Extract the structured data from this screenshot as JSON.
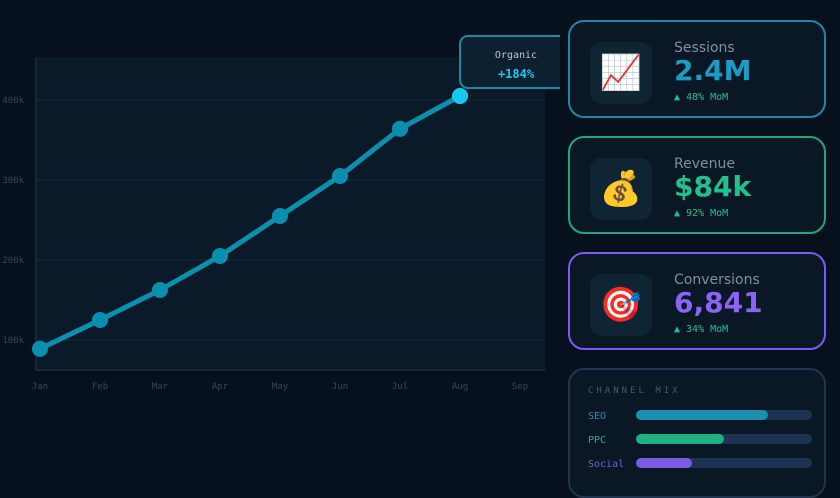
{
  "chart_data": {
    "type": "line",
    "categories": [
      "Jan",
      "Feb",
      "Mar",
      "Apr",
      "May",
      "Jun",
      "Jul",
      "Aug",
      "Sep"
    ],
    "series": [
      {
        "name": "Organic",
        "color": "#0a8fae",
        "values": [
          89000,
          125000,
          162500,
          205000,
          255000,
          305000,
          364000,
          405000,
          null
        ]
      }
    ],
    "ylim": [
      62500,
      453750
    ],
    "yticks": [
      {
        "value": 100000,
        "label": "100k"
      },
      {
        "value": 200000,
        "label": "200k"
      },
      {
        "value": 300000,
        "label": "300k"
      },
      {
        "value": 400000,
        "label": "400k"
      }
    ],
    "grid": true,
    "annotation": {
      "label": "Organic",
      "text": "+184%"
    }
  },
  "cards": [
    {
      "icon": "📈",
      "title": "Sessions",
      "value": "2.4M",
      "change": "▲ 48% MoM",
      "color": "#1a9cc4",
      "border": "#1e86a6"
    },
    {
      "icon": "💰",
      "title": "Revenue",
      "value": "$84k",
      "change": "▲ 92% MoM",
      "color": "#22c08f",
      "border": "#1fa67c"
    },
    {
      "icon": "🎯",
      "title": "Conversions",
      "value": "6,841",
      "change": "▲ 34% MoM",
      "color": "#8b64f5",
      "border": "#7b5cf0"
    }
  ],
  "channel_mix": {
    "title": "CHANNEL MIX",
    "xlim": [
      0,
      100
    ],
    "rows": [
      {
        "name": "SEO",
        "value": 75,
        "color": "#1a8fb0"
      },
      {
        "name": "PPC",
        "value": 50,
        "color": "#20b080"
      },
      {
        "name": "Social",
        "value": 32,
        "color": "#7b5ce0"
      }
    ]
  }
}
